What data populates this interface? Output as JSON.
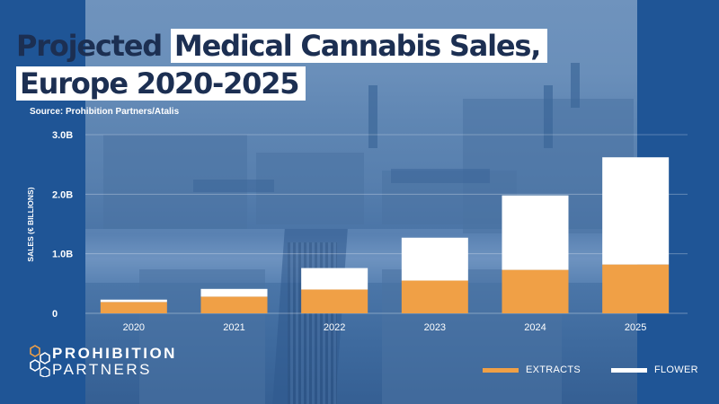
{
  "title": {
    "line1_plain": "Projected ",
    "line1_highlight": "Medical Cannabis Sales,",
    "line2_highlight": "Europe 2020-2025"
  },
  "source": "Source: Prohibition Partners/Atalis",
  "brand": {
    "line1": "PROHIBITION",
    "line2": "PARTNERS",
    "logo_icon": "hexagon-cluster-icon"
  },
  "colors": {
    "background": "#1f5596",
    "extracts": "#f0a046",
    "flower": "#ffffff",
    "title": "#1c2f52"
  },
  "chart_data": {
    "type": "bar",
    "stacked": true,
    "title": "Projected Medical Cannabis Sales, Europe 2020-2025",
    "xlabel": "",
    "ylabel": "SALES (€ BILLIONS)",
    "ylim": [
      0,
      3.0
    ],
    "yticks": [
      0,
      1.0,
      2.0,
      3.0
    ],
    "ytick_labels": [
      "0",
      "1.0B",
      "2.0B",
      "3.0B"
    ],
    "grid": true,
    "legend_position": "bottom-right",
    "categories": [
      "2020",
      "2021",
      "2022",
      "2023",
      "2024",
      "2025"
    ],
    "series": [
      {
        "name": "EXTRACTS",
        "color": "#f0a046",
        "values": [
          0.19,
          0.28,
          0.4,
          0.55,
          0.73,
          0.82
        ]
      },
      {
        "name": "FLOWER",
        "color": "#ffffff",
        "values": [
          0.04,
          0.13,
          0.36,
          0.72,
          1.25,
          1.8
        ]
      }
    ]
  }
}
